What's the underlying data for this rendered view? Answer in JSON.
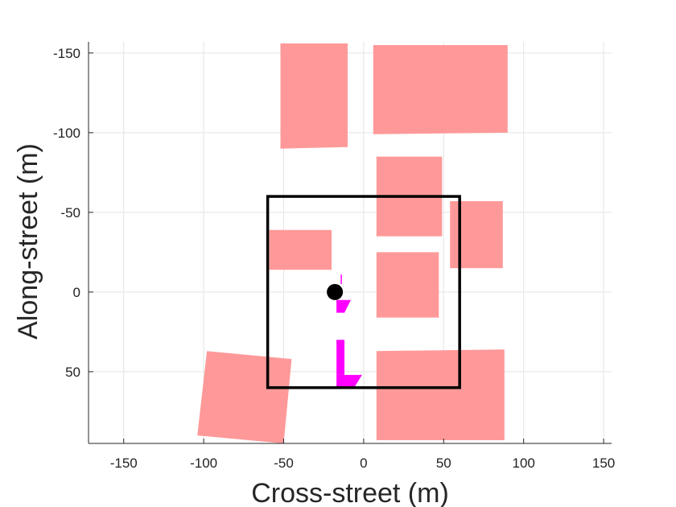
{
  "chart_data": {
    "type": "scatter",
    "title": "",
    "xlabel": "Cross-street (m)",
    "ylabel": "Along-street (m)",
    "xlim": [
      -172,
      155
    ],
    "ylim": [
      -157,
      95
    ],
    "y_reversed": true,
    "grid": true,
    "xticks": [
      -150,
      -100,
      -50,
      0,
      50,
      100,
      150
    ],
    "yticks": [
      -150,
      -100,
      -50,
      0,
      50
    ],
    "xtick_labels": [
      "-150",
      "-100",
      "-50",
      "0",
      "50",
      "100",
      "150"
    ],
    "ytick_labels": [
      "-150",
      "-100",
      "-50",
      "0",
      "50"
    ],
    "buildings": [
      {
        "name": "building-1",
        "color": "#ff9999",
        "corners": [
          [
            -52,
            -156
          ],
          [
            -10,
            -156
          ],
          [
            -10,
            -91
          ],
          [
            -52,
            -90
          ]
        ]
      },
      {
        "name": "building-2",
        "color": "#ff9999",
        "corners": [
          [
            6,
            -155
          ],
          [
            90,
            -155
          ],
          [
            90,
            -100
          ],
          [
            6,
            -99
          ]
        ]
      },
      {
        "name": "building-3",
        "color": "#ff9999",
        "corners": [
          [
            8,
            -85
          ],
          [
            49,
            -85
          ],
          [
            49,
            -35
          ],
          [
            8,
            -35
          ]
        ]
      },
      {
        "name": "building-4",
        "color": "#ff9999",
        "corners": [
          [
            54,
            -57
          ],
          [
            87,
            -57
          ],
          [
            87,
            -15
          ],
          [
            54,
            -15
          ]
        ]
      },
      {
        "name": "building-5",
        "color": "#ff9999",
        "corners": [
          [
            -59,
            -39
          ],
          [
            -20,
            -39
          ],
          [
            -20,
            -14
          ],
          [
            -59,
            -14
          ]
        ]
      },
      {
        "name": "building-6",
        "color": "#ff9999",
        "corners": [
          [
            8,
            -25
          ],
          [
            47,
            -25
          ],
          [
            47,
            16
          ],
          [
            8,
            16
          ]
        ]
      },
      {
        "name": "building-7",
        "color": "#ff9999",
        "corners": [
          [
            8,
            37
          ],
          [
            88,
            36
          ],
          [
            88,
            93
          ],
          [
            8,
            93
          ]
        ]
      },
      {
        "name": "building-8",
        "color": "#ff9999",
        "corners": [
          [
            -98,
            37
          ],
          [
            -45,
            42
          ],
          [
            -50,
            95
          ],
          [
            -104,
            90
          ]
        ]
      }
    ],
    "region_box": {
      "name": "square-region",
      "color": "#000000",
      "x": [
        -60,
        60
      ],
      "y": [
        -60,
        60
      ]
    },
    "point": {
      "name": "observer",
      "color": "#000000",
      "x": -18,
      "y": 0
    },
    "magenta_shapes": {
      "color": "#ff00ff",
      "polygons": [
        [
          [
            -17,
            5
          ],
          [
            -8,
            5
          ],
          [
            -12,
            13
          ],
          [
            -17,
            13
          ]
        ],
        [
          [
            -17,
            30
          ],
          [
            -12,
            30
          ],
          [
            -12,
            52
          ],
          [
            -17,
            52
          ]
        ],
        [
          [
            -17,
            52
          ],
          [
            -1,
            52
          ],
          [
            -6,
            60
          ],
          [
            -17,
            60
          ]
        ]
      ],
      "lines": [
        [
          [
            -14,
            -11
          ],
          [
            -14,
            -5
          ]
        ]
      ]
    }
  }
}
